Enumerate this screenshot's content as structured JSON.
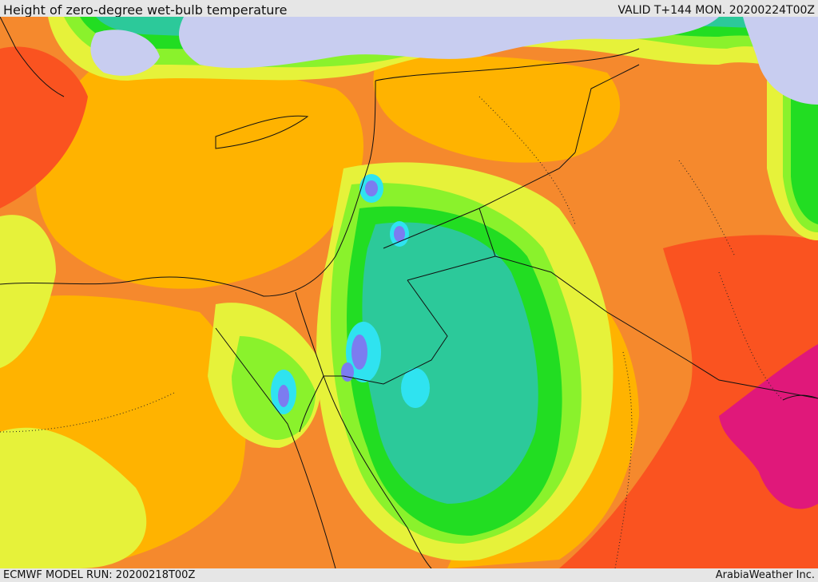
{
  "header": {
    "title": "Height of zero-degree wet-bulb temperature",
    "valid": "VALID T+144 MON. 20200224T00Z"
  },
  "footer": {
    "model_run": "ECMWF MODEL RUN: 20200218T00Z",
    "credit": "ArabiaWeather Inc."
  },
  "map": {
    "field": "zero-degree wet-bulb height",
    "colors": {
      "lowest": "#c8cdf0",
      "very_low": "#7c7cf0",
      "low": "#2fe3f0",
      "teal": "#2cc99a",
      "green": "#22dd22",
      "light_green": "#8af22c",
      "yellow": "#e6f23a",
      "amber": "#ffb300",
      "orange": "#f5892d",
      "red_orange": "#fa5320",
      "magenta": "#e0187a"
    }
  }
}
